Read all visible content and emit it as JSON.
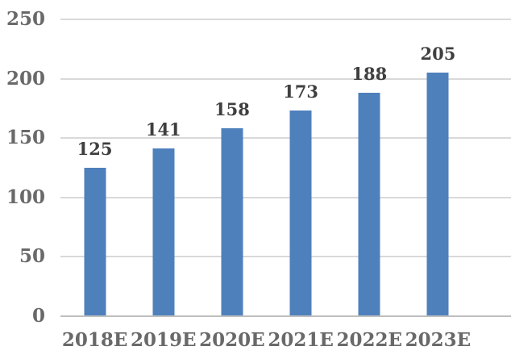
{
  "chart_data": {
    "type": "bar",
    "categories": [
      "2018E",
      "2019E",
      "2020E",
      "2021E",
      "2022E",
      "2023E"
    ],
    "values": [
      125,
      141,
      158,
      173,
      188,
      205
    ],
    "data_labels": [
      "125",
      "141",
      "158",
      "173",
      "188",
      "205"
    ],
    "title": "",
    "xlabel": "",
    "ylabel": "",
    "ylim": [
      0,
      250
    ],
    "yticks": [
      0,
      50,
      100,
      150,
      200,
      250
    ],
    "grid": true,
    "legend": "none",
    "colors": {
      "bar": "#4E80BC",
      "gridline": "#D9D9D9",
      "axis_line": "#BFBFBF",
      "tick_label": "#696969",
      "data_label": "#3F3F3F",
      "background": "#FFFFFF"
    }
  }
}
